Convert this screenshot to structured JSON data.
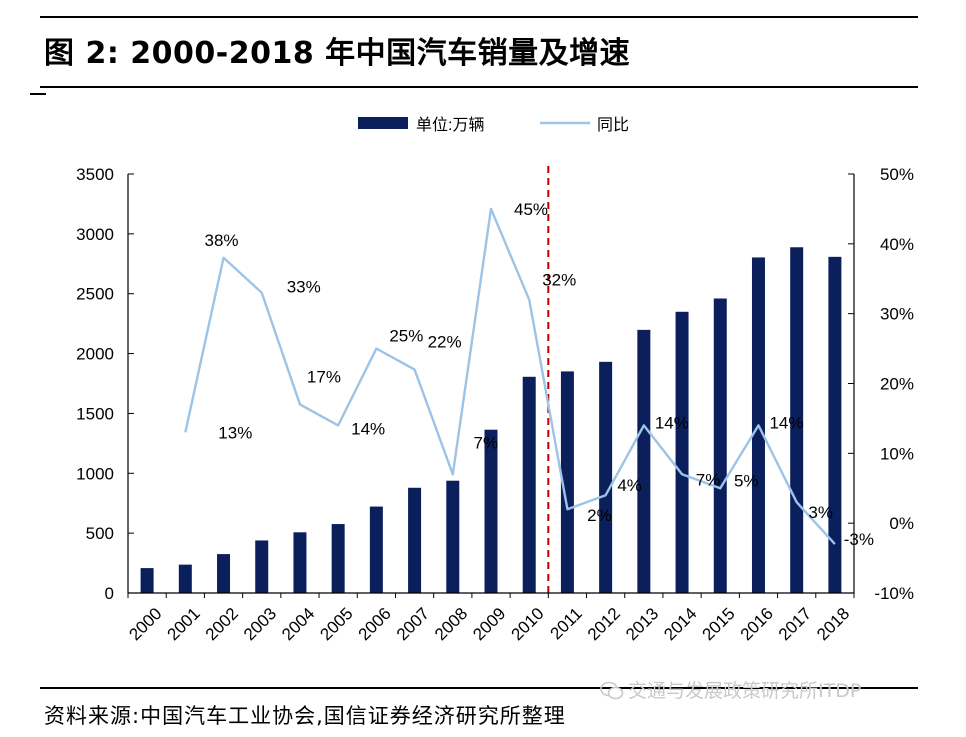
{
  "figure": {
    "title": "图 2:  2000-2018 年中国汽车销量及增速",
    "source": "资料来源:中国汽车工业协会,国信证券经济研究所整理",
    "watermark": "交通与发展政策研究所ITDP"
  },
  "chart_data": {
    "type": "bar",
    "categories": [
      "2000",
      "2001",
      "2002",
      "2003",
      "2004",
      "2005",
      "2006",
      "2007",
      "2008",
      "2009",
      "2010",
      "2011",
      "2012",
      "2013",
      "2014",
      "2015",
      "2016",
      "2017",
      "2018"
    ],
    "series": [
      {
        "name": "单位:万辆",
        "type": "bar",
        "axis": "left",
        "color": "#0b1f5c",
        "values": [
          208,
          237,
          325,
          439,
          507,
          576,
          722,
          879,
          938,
          1364,
          1806,
          1851,
          1931,
          2198,
          2349,
          2460,
          2803,
          2888,
          2808
        ]
      },
      {
        "name": "同比",
        "type": "line",
        "axis": "right",
        "color": "#9dc3e6",
        "values": [
          null,
          13,
          38,
          33,
          17,
          14,
          25,
          22,
          7,
          45,
          32,
          2,
          4,
          14,
          7,
          5,
          14,
          3,
          -3
        ],
        "labels": [
          null,
          "13%",
          "38%",
          "33%",
          "17%",
          "14%",
          "25%",
          "22%",
          "7%",
          "45%",
          "32%",
          "2%",
          "4%",
          "14%",
          "7%",
          "5%",
          "14%",
          "3%",
          "-3%"
        ]
      }
    ],
    "y_left": {
      "min": 0,
      "max": 3500,
      "ticks": [
        "0",
        "500",
        "1000",
        "1500",
        "2000",
        "2500",
        "3000",
        "3500"
      ]
    },
    "y_right": {
      "min": -10,
      "max": 50,
      "ticks": [
        "-10%",
        "0%",
        "10%",
        "20%",
        "30%",
        "40%",
        "50%"
      ]
    },
    "reference_line": {
      "after_category": "2010",
      "color": "#c00000",
      "style": "dashed"
    },
    "legend_position": "top-center",
    "grid": false
  }
}
